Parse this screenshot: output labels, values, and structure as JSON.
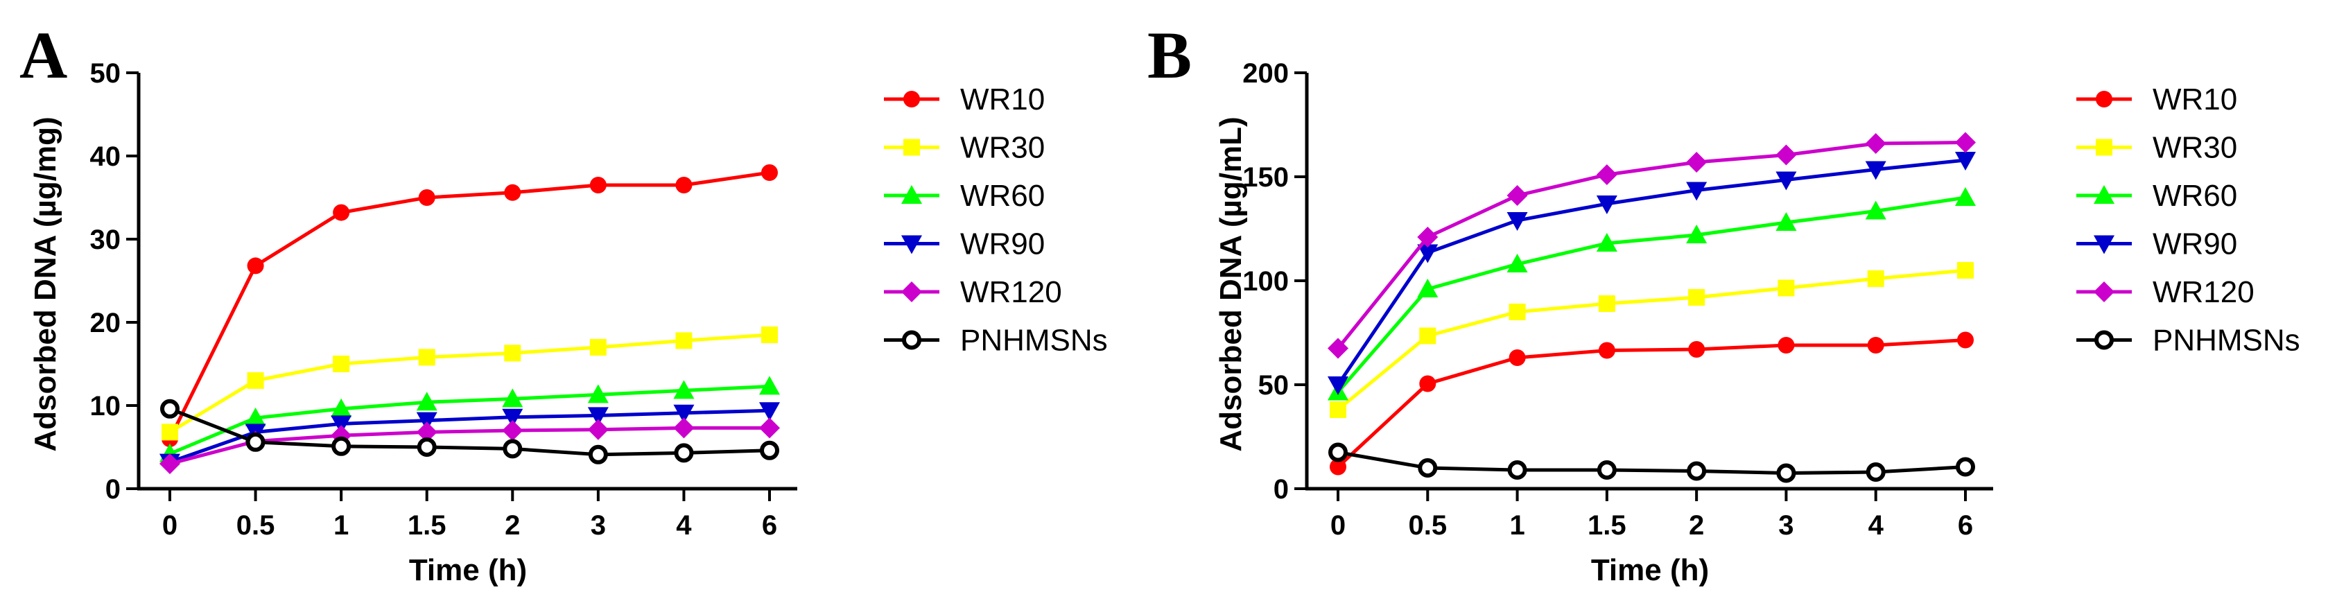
{
  "chart_data": [
    {
      "type": "line",
      "panel_label": "A",
      "xlabel": "Time (h)",
      "ylabel": "Adsorbed DNA (µg/mg)",
      "x": [
        "0",
        "0.5",
        "1",
        "1.5",
        "2",
        "3",
        "4",
        "6"
      ],
      "ylim": [
        0,
        50
      ],
      "yticks": [
        0,
        10,
        20,
        30,
        40,
        50
      ],
      "grid": false,
      "legend": "right",
      "series": [
        {
          "name": "WR10",
          "color": "#ff0000",
          "marker": "circle",
          "values": [
            6.0,
            26.8,
            33.2,
            35.0,
            35.6,
            36.5,
            36.5,
            38.0
          ]
        },
        {
          "name": "WR30",
          "color": "#ffff00",
          "marker": "square",
          "values": [
            6.8,
            13.0,
            15.0,
            15.8,
            16.3,
            17.0,
            17.8,
            18.5
          ]
        },
        {
          "name": "WR60",
          "color": "#00ff00",
          "marker": "triangle-up",
          "values": [
            4.2,
            8.5,
            9.6,
            10.4,
            10.8,
            11.3,
            11.8,
            12.3
          ]
        },
        {
          "name": "WR90",
          "color": "#0000cc",
          "marker": "triangle-down",
          "values": [
            3.2,
            6.8,
            7.8,
            8.2,
            8.6,
            8.8,
            9.1,
            9.4
          ]
        },
        {
          "name": "WR120",
          "color": "#cc00cc",
          "marker": "diamond",
          "values": [
            3.0,
            5.7,
            6.4,
            6.8,
            7.0,
            7.1,
            7.3,
            7.3
          ]
        },
        {
          "name": "PNHMSNs",
          "color": "#000000",
          "marker": "open-circle",
          "values": [
            9.6,
            5.6,
            5.1,
            5.0,
            4.8,
            4.1,
            4.3,
            4.6
          ]
        }
      ]
    },
    {
      "type": "line",
      "panel_label": "B",
      "xlabel": "Time (h)",
      "ylabel": "Adsorbed DNA (µg/mL)",
      "x": [
        "0",
        "0.5",
        "1",
        "1.5",
        "2",
        "3",
        "4",
        "6"
      ],
      "ylim": [
        0,
        200
      ],
      "yticks": [
        0,
        50,
        100,
        150,
        200
      ],
      "grid": false,
      "legend": "right",
      "series": [
        {
          "name": "WR10",
          "color": "#ff0000",
          "marker": "circle",
          "values": [
            10.5,
            50.5,
            63.0,
            66.5,
            67.0,
            69.0,
            69.0,
            71.5
          ]
        },
        {
          "name": "WR30",
          "color": "#ffff00",
          "marker": "square",
          "values": [
            38.0,
            73.5,
            85.0,
            89.0,
            92.0,
            96.5,
            101.0,
            105.0
          ]
        },
        {
          "name": "WR60",
          "color": "#00ff00",
          "marker": "triangle-up",
          "values": [
            46.5,
            96.0,
            108.0,
            118.0,
            122.0,
            128.0,
            133.5,
            140.0
          ]
        },
        {
          "name": "WR90",
          "color": "#0000cc",
          "marker": "triangle-down",
          "values": [
            50.0,
            113.5,
            129.0,
            137.0,
            143.5,
            148.5,
            153.5,
            158.0
          ]
        },
        {
          "name": "WR120",
          "color": "#cc00cc",
          "marker": "diamond",
          "values": [
            67.5,
            121.0,
            141.0,
            151.0,
            157.0,
            160.5,
            166.0,
            166.5
          ]
        },
        {
          "name": "PNHMSNs",
          "color": "#000000",
          "marker": "open-circle",
          "values": [
            17.5,
            10.0,
            9.0,
            9.0,
            8.5,
            7.5,
            8.0,
            10.5
          ]
        }
      ]
    }
  ]
}
